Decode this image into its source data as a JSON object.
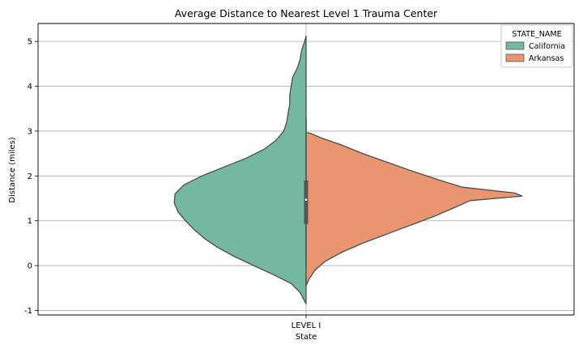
{
  "chart_data": {
    "type": "violin",
    "title": "Average Distance to Nearest Level 1 Trauma Center",
    "xlabel": "State",
    "ylabel": "Distance (miles)",
    "categories": [
      "LEVEL I"
    ],
    "ylim": [
      -1.1,
      5.4
    ],
    "yticks": [
      -1,
      0,
      1,
      2,
      3,
      4,
      5
    ],
    "grid": true,
    "split": true,
    "legend": {
      "title": "STATE_NAME",
      "position": "top-right",
      "entries": [
        "California",
        "Arkansas"
      ]
    },
    "series": [
      {
        "name": "California",
        "side": "left",
        "color": "#74b8a2",
        "density": [
          {
            "y": -0.85,
            "w": 0.0
          },
          {
            "y": -0.6,
            "w": 0.04
          },
          {
            "y": -0.4,
            "w": 0.1
          },
          {
            "y": -0.2,
            "w": 0.22
          },
          {
            "y": 0.0,
            "w": 0.35
          },
          {
            "y": 0.2,
            "w": 0.48
          },
          {
            "y": 0.4,
            "w": 0.59
          },
          {
            "y": 0.6,
            "w": 0.68
          },
          {
            "y": 0.8,
            "w": 0.75
          },
          {
            "y": 1.0,
            "w": 0.81
          },
          {
            "y": 1.2,
            "w": 0.86
          },
          {
            "y": 1.4,
            "w": 0.885
          },
          {
            "y": 1.6,
            "w": 0.88
          },
          {
            "y": 1.8,
            "w": 0.82
          },
          {
            "y": 2.0,
            "w": 0.7
          },
          {
            "y": 2.2,
            "w": 0.55
          },
          {
            "y": 2.4,
            "w": 0.4
          },
          {
            "y": 2.6,
            "w": 0.28
          },
          {
            "y": 2.8,
            "w": 0.2
          },
          {
            "y": 3.0,
            "w": 0.15
          },
          {
            "y": 3.2,
            "w": 0.13
          },
          {
            "y": 3.4,
            "w": 0.12
          },
          {
            "y": 3.6,
            "w": 0.11
          },
          {
            "y": 3.8,
            "w": 0.11
          },
          {
            "y": 4.0,
            "w": 0.1
          },
          {
            "y": 4.2,
            "w": 0.09
          },
          {
            "y": 4.4,
            "w": 0.06
          },
          {
            "y": 4.6,
            "w": 0.04
          },
          {
            "y": 4.8,
            "w": 0.03
          },
          {
            "y": 5.0,
            "w": 0.01
          },
          {
            "y": 5.12,
            "w": 0.0
          }
        ]
      },
      {
        "name": "Arkansas",
        "side": "right",
        "color": "#e9956f",
        "density": [
          {
            "y": -0.45,
            "w": 0.0
          },
          {
            "y": -0.3,
            "w": 0.02
          },
          {
            "y": -0.1,
            "w": 0.06
          },
          {
            "y": 0.1,
            "w": 0.13
          },
          {
            "y": 0.3,
            "w": 0.24
          },
          {
            "y": 0.5,
            "w": 0.38
          },
          {
            "y": 0.7,
            "w": 0.54
          },
          {
            "y": 0.9,
            "w": 0.7
          },
          {
            "y": 1.1,
            "w": 0.86
          },
          {
            "y": 1.3,
            "w": 1.0
          },
          {
            "y": 1.45,
            "w": 1.1
          },
          {
            "y": 1.55,
            "w": 1.45
          },
          {
            "y": 1.62,
            "w": 1.4
          },
          {
            "y": 1.75,
            "w": 1.05
          },
          {
            "y": 1.9,
            "w": 0.9
          },
          {
            "y": 2.1,
            "w": 0.72
          },
          {
            "y": 2.3,
            "w": 0.55
          },
          {
            "y": 2.5,
            "w": 0.38
          },
          {
            "y": 2.7,
            "w": 0.23
          },
          {
            "y": 2.85,
            "w": 0.1
          },
          {
            "y": 2.95,
            "w": 0.03
          },
          {
            "y": 2.97,
            "w": 0.0
          }
        ]
      }
    ],
    "inner_box": {
      "q1": 0.93,
      "median": 1.47,
      "q3": 1.9,
      "whisker_low": 0.0,
      "whisker_high": 3.3
    }
  }
}
